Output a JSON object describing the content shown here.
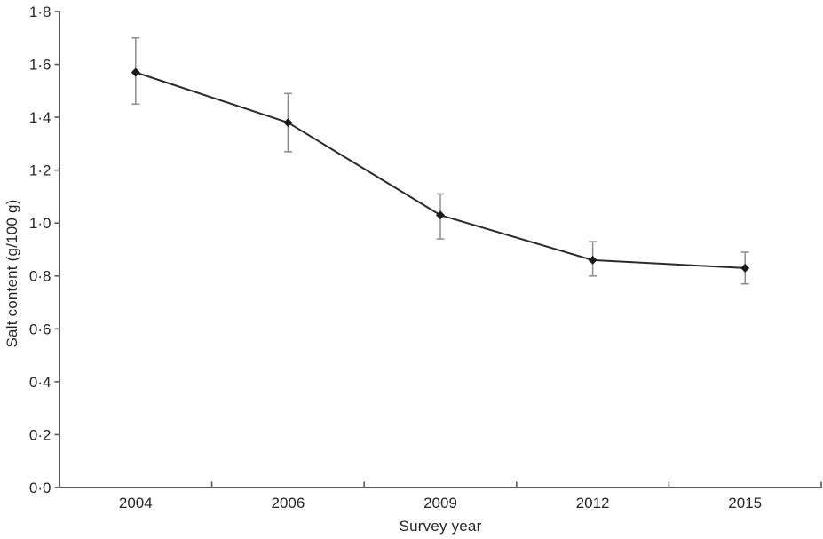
{
  "chart_data": {
    "type": "line",
    "title": "",
    "xlabel": "Survey year",
    "ylabel": "Salt content (g/100 g)",
    "categories": [
      "2004",
      "2006",
      "2009",
      "2012",
      "2015"
    ],
    "series": [
      {
        "name": "Salt content",
        "values": [
          1.57,
          1.38,
          1.03,
          0.86,
          0.83
        ],
        "error_upper": [
          1.7,
          1.49,
          1.11,
          0.93,
          0.89
        ],
        "error_lower": [
          1.45,
          1.27,
          0.94,
          0.8,
          0.77
        ]
      }
    ],
    "ylim": [
      0.0,
      1.8
    ],
    "yticks": [
      {
        "value": 0.0,
        "label": "0·0"
      },
      {
        "value": 0.2,
        "label": "0·2"
      },
      {
        "value": 0.4,
        "label": "0·4"
      },
      {
        "value": 0.6,
        "label": "0·6"
      },
      {
        "value": 0.8,
        "label": "0·8"
      },
      {
        "value": 1.0,
        "label": "1·0"
      },
      {
        "value": 1.2,
        "label": "1·2"
      },
      {
        "value": 1.4,
        "label": "1·4"
      },
      {
        "value": 1.6,
        "label": "1·6"
      },
      {
        "value": 1.8,
        "label": "1·8"
      }
    ],
    "grid": false,
    "legend": "none",
    "marker": "diamond",
    "x_ticks_between_categories": true,
    "colors": {
      "line": "#2b2b2b",
      "marker": "#1a1a1a",
      "error_bar": "#8c8c8c",
      "axis": "#595959",
      "text": "#262626",
      "background": "#ffffff"
    }
  }
}
